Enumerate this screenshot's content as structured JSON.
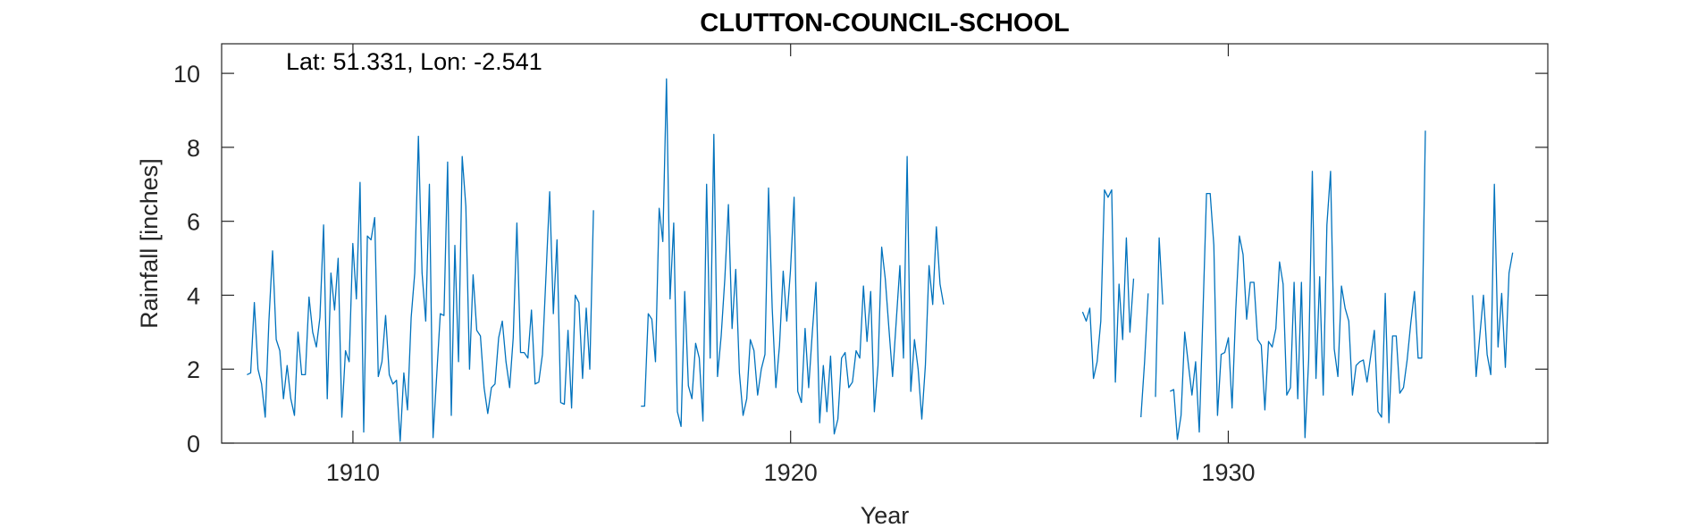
{
  "chart_data": {
    "type": "line",
    "title": "CLUTTON-COUNCIL-SCHOOL",
    "annotation": "Lat: 51.331, Lon: -2.541",
    "xlabel": "Year",
    "ylabel": "Rainfall [inches]",
    "xlim": [
      1907.0,
      1937.3
    ],
    "ylim": [
      0,
      10.8
    ],
    "xticks": [
      1910,
      1920,
      1930
    ],
    "yticks": [
      0,
      2,
      4,
      6,
      8,
      10
    ],
    "xtick_labels": [
      "1910",
      "1920",
      "1930"
    ],
    "ytick_labels": [
      "0",
      "2",
      "4",
      "6",
      "8",
      "10"
    ],
    "grid": false,
    "line_color": "#0072BD",
    "series": [
      {
        "values_segments": [
          {
            "x_start": 1907.58,
            "y": [
              1.85,
              1.9,
              3.8,
              2.0,
              1.6,
              0.7,
              3.3,
              5.2,
              2.8,
              2.5,
              1.2,
              2.1,
              1.2,
              0.75,
              3.0,
              1.85,
              1.85,
              3.95,
              3.0,
              2.6,
              3.4,
              5.9,
              1.2,
              4.6,
              3.6,
              5.0,
              0.7,
              2.5,
              2.2,
              5.4,
              3.9,
              7.05,
              0.3,
              5.6,
              5.5,
              6.1,
              1.8,
              2.2,
              3.45,
              1.85,
              1.6,
              1.7,
              0.05,
              1.9,
              0.9,
              3.4,
              4.6,
              8.3,
              4.6,
              3.3,
              7.0,
              0.15,
              1.8,
              3.5,
              3.45,
              7.6,
              0.75,
              5.35,
              2.2,
              7.75,
              6.4,
              2.0,
              4.55,
              3.05,
              2.9,
              1.5,
              0.8,
              1.5,
              1.6,
              2.85,
              3.3,
              2.2,
              1.5,
              2.85,
              5.95,
              2.45,
              2.45,
              2.3,
              3.6,
              1.6,
              1.65,
              2.4,
              4.6,
              6.8,
              3.5,
              5.5,
              1.1,
              1.05,
              3.05,
              0.95,
              4.0,
              3.8,
              1.75,
              3.65,
              2.0,
              6.3
            ]
          },
          {
            "x_start": 1916.58,
            "y": [
              1.0,
              1.0,
              3.5,
              3.35,
              2.2,
              6.35,
              5.45,
              9.85,
              3.9,
              5.95,
              0.85,
              0.45,
              4.1,
              1.55,
              1.2,
              2.7,
              2.3,
              0.6,
              7.0,
              2.3,
              8.35,
              1.8,
              2.9,
              4.45,
              6.45,
              3.1,
              4.7,
              1.9,
              0.75,
              1.2,
              2.8,
              2.5,
              1.3,
              2.0,
              2.4,
              6.9,
              3.65,
              1.5,
              2.65,
              4.65,
              3.3,
              4.65,
              6.65,
              1.4,
              1.1,
              3.1,
              1.5,
              3.0,
              4.35,
              0.55,
              2.1,
              0.85,
              2.35,
              0.25,
              0.65,
              2.3,
              2.45,
              1.5,
              1.65,
              2.5,
              2.3,
              4.25,
              2.75,
              4.1,
              0.85,
              2.1,
              5.3,
              4.45,
              3.1,
              1.8,
              3.3,
              4.8,
              2.3,
              7.75,
              1.4,
              2.8,
              2.0,
              0.65,
              2.1,
              4.8,
              3.75,
              5.85,
              4.3,
              3.75
            ]
          },
          {
            "x_start": 1926.67,
            "y": [
              3.55,
              3.3,
              3.65,
              1.75,
              2.2,
              3.3,
              6.85,
              6.65,
              6.85,
              1.65,
              4.3,
              2.8,
              5.55,
              3.0,
              4.45,
              null,
              0.7,
              2.2,
              4.05,
              null,
              1.25,
              5.55,
              3.75,
              null,
              1.4,
              1.45,
              0.1,
              0.75,
              3.0,
              2.15,
              1.3,
              2.2,
              0.3,
              3.5,
              6.75,
              6.75,
              5.35,
              0.75,
              2.4,
              2.45,
              2.85,
              0.95,
              3.6,
              5.6,
              5.1,
              3.35,
              4.35,
              4.35,
              2.8,
              2.65,
              0.9,
              2.75,
              2.6,
              3.1,
              4.9,
              4.3,
              1.3,
              1.5,
              4.35,
              1.2,
              4.35,
              0.15,
              2.25,
              7.35,
              1.75,
              4.5,
              1.3,
              5.9,
              7.35,
              2.55,
              1.8,
              4.25,
              3.65,
              3.3,
              1.3,
              2.1,
              2.2,
              2.25,
              1.65,
              2.35,
              3.05,
              0.85,
              0.7,
              4.05,
              0.55,
              2.9,
              2.9,
              1.35,
              1.5,
              2.25,
              3.25,
              4.1,
              2.3,
              2.3,
              8.45
            ]
          },
          {
            "x_start": 1935.58,
            "y": [
              4.0,
              1.8,
              2.9,
              4.0,
              2.4,
              1.85,
              7.0,
              2.6,
              4.05,
              2.05,
              4.6,
              5.15
            ]
          }
        ],
        "step": 0.08333
      }
    ]
  }
}
